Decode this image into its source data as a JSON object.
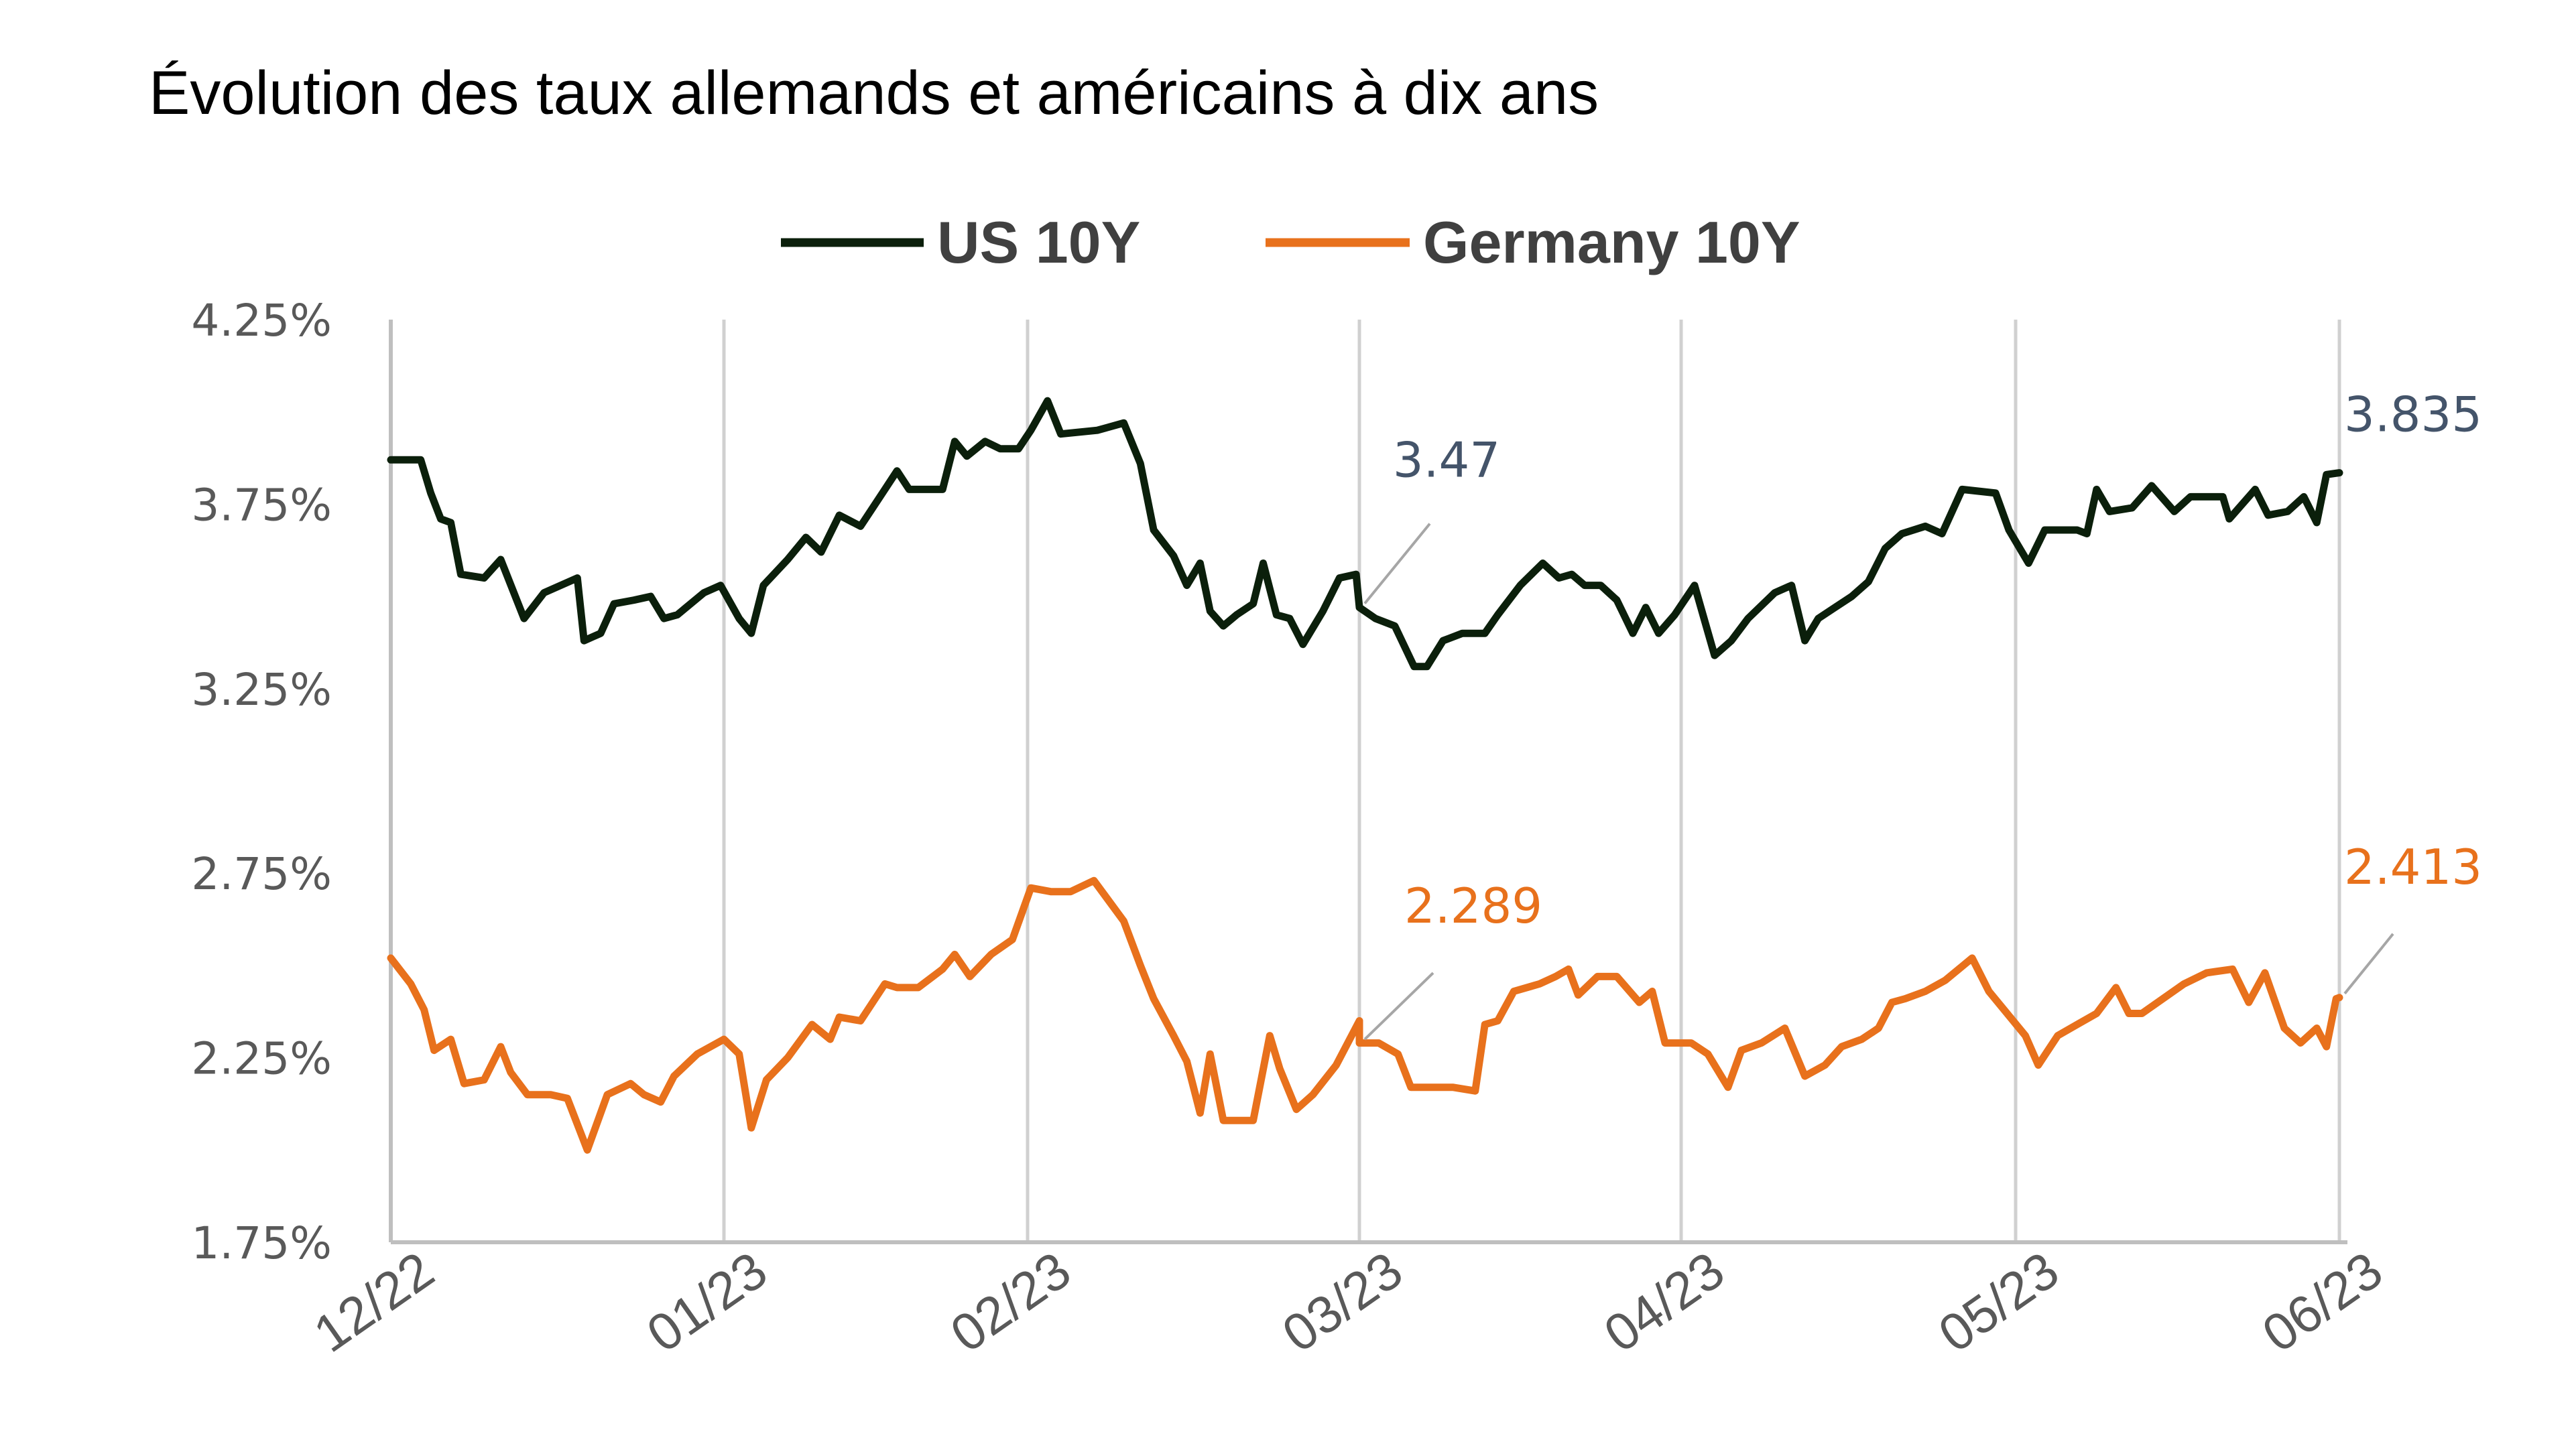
{
  "chart_data": {
    "type": "line",
    "title": "Évolution des taux allemands et américains à dix ans",
    "xlabel": "",
    "ylabel": "",
    "x_unit": "months since 12/22",
    "x_tick_labels": [
      "12/22",
      "01/23",
      "02/23",
      "03/23",
      "04/23",
      "05/23",
      "06/23"
    ],
    "y_tick_labels": [
      "4.25%",
      "3.75%",
      "3.25%",
      "2.75%",
      "2.25%",
      "1.75%"
    ],
    "y_ticks": [
      4.25,
      3.75,
      3.25,
      2.75,
      2.25,
      1.75
    ],
    "ylim": [
      1.75,
      4.25
    ],
    "xlim": [
      0,
      6
    ],
    "grid": "vertical",
    "legend": {
      "position": "top-center"
    },
    "series": [
      {
        "name": "US 10Y",
        "color": "#0b1f0b",
        "x": [
          0.0,
          0.09,
          0.12,
          0.15,
          0.18,
          0.21,
          0.28,
          0.33,
          0.4,
          0.46,
          0.56,
          0.58,
          0.63,
          0.67,
          0.73,
          0.78,
          0.82,
          0.86,
          0.94,
          0.99,
          1.05,
          1.09,
          1.13,
          1.21,
          1.27,
          1.32,
          1.38,
          1.45,
          1.53,
          1.57,
          1.61,
          1.72,
          1.76,
          1.8,
          1.86,
          1.91,
          1.97,
          2.01,
          2.06,
          2.1,
          2.21,
          2.29,
          2.34,
          2.38,
          2.44,
          2.48,
          2.52,
          2.55,
          2.59,
          2.63,
          2.68,
          2.71,
          2.75,
          2.79,
          2.83,
          2.89,
          2.94,
          2.99,
          3.0,
          3.05,
          3.11,
          3.17,
          3.21,
          3.26,
          3.32,
          3.39,
          3.43,
          3.5,
          3.57,
          3.62,
          3.66,
          3.7,
          3.75,
          3.8,
          3.85,
          3.89,
          3.93,
          3.98,
          4.04,
          4.1,
          4.15,
          4.2,
          4.28,
          4.33,
          4.37,
          4.41,
          4.46,
          4.51,
          4.56,
          4.61,
          4.66,
          4.73,
          4.78,
          4.84,
          4.94,
          4.98,
          5.04,
          5.09,
          5.19,
          5.22,
          5.25,
          5.29,
          5.36,
          5.42,
          5.49,
          5.54,
          5.64,
          5.66,
          5.74,
          5.78,
          5.84,
          5.89,
          5.93,
          5.96,
          6.0
        ],
        "values": [
          3.87,
          3.87,
          3.78,
          3.71,
          3.7,
          3.56,
          3.55,
          3.6,
          3.44,
          3.51,
          3.55,
          3.38,
          3.4,
          3.48,
          3.49,
          3.5,
          3.44,
          3.45,
          3.51,
          3.53,
          3.44,
          3.4,
          3.53,
          3.6,
          3.66,
          3.62,
          3.72,
          3.69,
          3.79,
          3.84,
          3.79,
          3.79,
          3.92,
          3.88,
          3.92,
          3.9,
          3.9,
          3.95,
          4.03,
          3.94,
          3.95,
          3.97,
          3.86,
          3.68,
          3.61,
          3.53,
          3.59,
          3.46,
          3.42,
          3.45,
          3.48,
          3.59,
          3.45,
          3.44,
          3.37,
          3.46,
          3.55,
          3.56,
          3.47,
          3.44,
          3.42,
          3.31,
          3.31,
          3.38,
          3.4,
          3.4,
          3.45,
          3.53,
          3.59,
          3.55,
          3.56,
          3.53,
          3.53,
          3.49,
          3.4,
          3.47,
          3.4,
          3.45,
          3.53,
          3.34,
          3.38,
          3.44,
          3.51,
          3.53,
          3.38,
          3.44,
          3.47,
          3.5,
          3.54,
          3.63,
          3.67,
          3.69,
          3.67,
          3.79,
          3.78,
          3.68,
          3.59,
          3.68,
          3.68,
          3.67,
          3.79,
          3.73,
          3.74,
          3.8,
          3.73,
          3.77,
          3.77,
          3.71,
          3.79,
          3.72,
          3.73,
          3.77,
          3.7,
          3.83,
          3.835
        ]
      },
      {
        "name": "Germany 10Y",
        "color": "#e8711c",
        "x": [
          0.0,
          0.06,
          0.1,
          0.13,
          0.18,
          0.22,
          0.28,
          0.33,
          0.36,
          0.41,
          0.48,
          0.53,
          0.59,
          0.65,
          0.72,
          0.76,
          0.81,
          0.85,
          0.92,
          1.0,
          1.05,
          1.09,
          1.14,
          1.21,
          1.29,
          1.35,
          1.38,
          1.45,
          1.53,
          1.57,
          1.64,
          1.72,
          1.76,
          1.81,
          1.88,
          1.95,
          2.01,
          2.07,
          2.13,
          2.2,
          2.29,
          2.34,
          2.38,
          2.44,
          2.48,
          2.52,
          2.55,
          2.59,
          2.63,
          2.68,
          2.73,
          2.76,
          2.81,
          2.86,
          2.93,
          3.0,
          3.0,
          3.06,
          3.12,
          3.16,
          3.22,
          3.29,
          3.36,
          3.39,
          3.43,
          3.48,
          3.56,
          3.61,
          3.65,
          3.68,
          3.74,
          3.8,
          3.87,
          3.91,
          3.95,
          4.03,
          4.08,
          4.14,
          4.18,
          4.24,
          4.31,
          4.37,
          4.43,
          4.48,
          4.54,
          4.59,
          4.63,
          4.67,
          4.73,
          4.79,
          4.87,
          4.92,
          5.03,
          5.07,
          5.13,
          5.19,
          5.25,
          5.31,
          5.35,
          5.39,
          5.52,
          5.59,
          5.67,
          5.72,
          5.77,
          5.83,
          5.88,
          5.93,
          5.96,
          5.99,
          6.0
        ],
        "values": [
          2.52,
          2.45,
          2.38,
          2.27,
          2.3,
          2.18,
          2.19,
          2.28,
          2.21,
          2.15,
          2.15,
          2.14,
          2.0,
          2.15,
          2.18,
          2.15,
          2.13,
          2.2,
          2.26,
          2.3,
          2.26,
          2.06,
          2.19,
          2.25,
          2.34,
          2.3,
          2.36,
          2.35,
          2.45,
          2.44,
          2.44,
          2.49,
          2.53,
          2.47,
          2.53,
          2.57,
          2.71,
          2.7,
          2.7,
          2.73,
          2.62,
          2.5,
          2.41,
          2.31,
          2.24,
          2.1,
          2.26,
          2.08,
          2.08,
          2.08,
          2.31,
          2.22,
          2.11,
          2.15,
          2.23,
          2.35,
          2.29,
          2.29,
          2.26,
          2.17,
          2.17,
          2.17,
          2.16,
          2.34,
          2.35,
          2.43,
          2.45,
          2.47,
          2.49,
          2.42,
          2.47,
          2.47,
          2.4,
          2.43,
          2.29,
          2.29,
          2.26,
          2.17,
          2.27,
          2.29,
          2.33,
          2.2,
          2.23,
          2.28,
          2.3,
          2.33,
          2.4,
          2.41,
          2.43,
          2.46,
          2.52,
          2.43,
          2.31,
          2.23,
          2.31,
          2.34,
          2.37,
          2.44,
          2.37,
          2.37,
          2.45,
          2.48,
          2.49,
          2.4,
          2.48,
          2.33,
          2.29,
          2.33,
          2.28,
          2.41,
          2.413
        ]
      }
    ],
    "annotations": [
      {
        "series": "US 10Y",
        "x": 3.0,
        "value": 3.47,
        "text": "3.47",
        "color": "#44546a"
      },
      {
        "series": "US 10Y",
        "x": 6.0,
        "value": 3.835,
        "text": "3.835",
        "color": "#44546a"
      },
      {
        "series": "Germany 10Y",
        "x": 3.0,
        "value": 2.289,
        "text": "2.289",
        "color": "#e8711c"
      },
      {
        "series": "Germany 10Y",
        "x": 6.0,
        "value": 2.413,
        "text": "2.413",
        "color": "#e8711c"
      }
    ]
  },
  "colors": {
    "gridline": "#d0d0d0",
    "axis": "#bfbfbf",
    "leader_line": "#a6a6a6"
  }
}
